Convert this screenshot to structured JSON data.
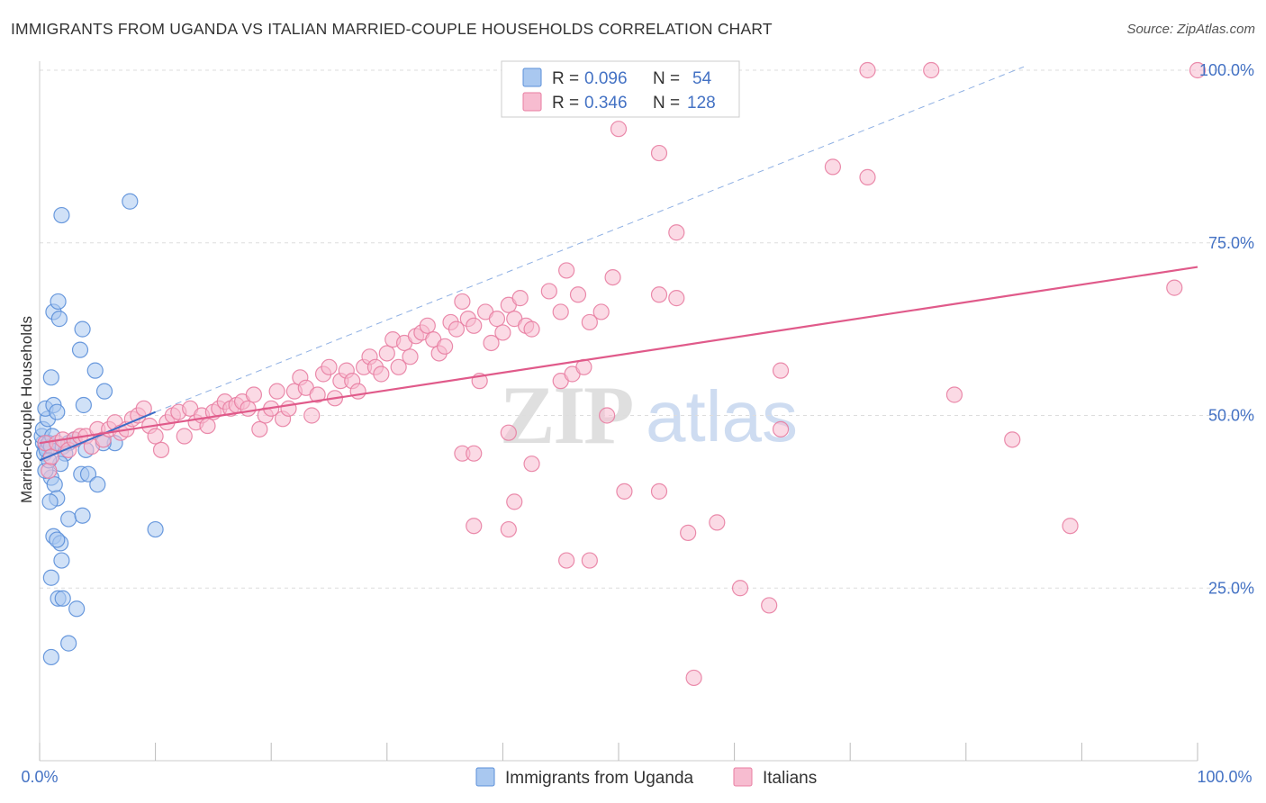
{
  "title": "IMMIGRANTS FROM UGANDA VS ITALIAN MARRIED-COUPLE HOUSEHOLDS CORRELATION CHART",
  "source": "Source: ZipAtlas.com",
  "watermark": {
    "zip": "ZIP",
    "atlas": "atlas"
  },
  "colors": {
    "blue_fill": "#a9c8f0",
    "blue_stroke": "#5b8fd9",
    "blue_line": "#3a6cc7",
    "pink_fill": "#f7bcd0",
    "pink_stroke": "#e87ea2",
    "pink_line": "#e05a8a",
    "axis_text": "#4472c4",
    "grid": "#dddddd"
  },
  "legend": {
    "rows": [
      {
        "r_label": "R =",
        "r_value": "0.096",
        "n_label": "N =",
        "n_value": "54",
        "series": "blue"
      },
      {
        "r_label": "R =",
        "r_value": "0.346",
        "n_label": "N =",
        "n_value": "128",
        "series": "pink"
      }
    ]
  },
  "chart_data": {
    "type": "scatter",
    "title": "IMMIGRANTS FROM UGANDA VS ITALIAN MARRIED-COUPLE HOUSEHOLDS CORRELATION CHART",
    "xlabel": "",
    "ylabel": "Married-couple Households",
    "xlim": [
      0,
      100
    ],
    "ylim": [
      0,
      102
    ],
    "x_tick_labels": [
      "0.0%",
      "100.0%"
    ],
    "y_ticks": [
      25,
      50,
      75,
      100
    ],
    "y_tick_labels": [
      "25.0%",
      "50.0%",
      "75.0%",
      "100.0%"
    ],
    "grid": "horizontal-dashed",
    "legend_position": "top-center",
    "series": [
      {
        "name": "Immigrants from Uganda",
        "color": "#a9c8f0",
        "trend": {
          "x": [
            0,
            10
          ],
          "y": [
            43.5,
            50.5
          ],
          "style": "solid"
        },
        "trend_extension": {
          "x": [
            10,
            85
          ],
          "y": [
            50.5,
            100.5
          ],
          "style": "dashed"
        },
        "points": [
          [
            0.3,
            46
          ],
          [
            0.5,
            45.5
          ],
          [
            0.4,
            44.5
          ],
          [
            0.2,
            47
          ],
          [
            0.6,
            45
          ],
          [
            0.8,
            46
          ],
          [
            1.0,
            45.5
          ],
          [
            0.3,
            48
          ],
          [
            0.7,
            49.5
          ],
          [
            0.5,
            51
          ],
          [
            1.2,
            51.5
          ],
          [
            1.5,
            50.5
          ],
          [
            1.0,
            55.5
          ],
          [
            1.2,
            65
          ],
          [
            1.6,
            66.5
          ],
          [
            1.7,
            64
          ],
          [
            1.9,
            79
          ],
          [
            3.5,
            59.5
          ],
          [
            3.8,
            51.5
          ],
          [
            3.6,
            41.5
          ],
          [
            4.2,
            41.5
          ],
          [
            4.8,
            56.5
          ],
          [
            3.7,
            62.5
          ],
          [
            5.6,
            53.5
          ],
          [
            7.8,
            81
          ],
          [
            6.5,
            46
          ],
          [
            5.0,
            40
          ],
          [
            1.0,
            41
          ],
          [
            1.3,
            40
          ],
          [
            1.5,
            38
          ],
          [
            0.9,
            37.5
          ],
          [
            2.5,
            35
          ],
          [
            3.7,
            35.5
          ],
          [
            1.2,
            32.5
          ],
          [
            1.8,
            31.5
          ],
          [
            1.5,
            32
          ],
          [
            1.9,
            29
          ],
          [
            1.0,
            26.5
          ],
          [
            1.6,
            23.5
          ],
          [
            2.0,
            23.5
          ],
          [
            3.2,
            22
          ],
          [
            2.5,
            17
          ],
          [
            1.0,
            15
          ],
          [
            10.0,
            33.5
          ],
          [
            2.0,
            45.5
          ],
          [
            2.5,
            46
          ],
          [
            3.0,
            46.5
          ],
          [
            2.2,
            44.5
          ],
          [
            1.8,
            43
          ],
          [
            0.5,
            42
          ],
          [
            0.8,
            43.5
          ],
          [
            1.1,
            47
          ],
          [
            4.0,
            45
          ],
          [
            5.5,
            46
          ]
        ]
      },
      {
        "name": "Italians",
        "color": "#f7bcd0",
        "trend": {
          "x": [
            0,
            100
          ],
          "y": [
            46,
            71.5
          ],
          "style": "solid"
        },
        "points": [
          [
            0.5,
            46
          ],
          [
            0.8,
            42
          ],
          [
            1.0,
            44
          ],
          [
            1.5,
            46
          ],
          [
            2.0,
            46.5
          ],
          [
            2.5,
            45
          ],
          [
            3.0,
            46.5
          ],
          [
            3.5,
            47
          ],
          [
            4.0,
            47
          ],
          [
            4.5,
            45.5
          ],
          [
            5.0,
            48
          ],
          [
            5.5,
            46.5
          ],
          [
            6.0,
            48
          ],
          [
            6.5,
            49
          ],
          [
            7.0,
            47.5
          ],
          [
            7.5,
            48
          ],
          [
            8.0,
            49.5
          ],
          [
            8.5,
            50
          ],
          [
            9.0,
            51
          ],
          [
            9.5,
            48.5
          ],
          [
            10.0,
            47
          ],
          [
            10.5,
            45
          ],
          [
            11.0,
            49
          ],
          [
            11.5,
            50
          ],
          [
            12.0,
            50.5
          ],
          [
            12.5,
            47
          ],
          [
            13.0,
            51
          ],
          [
            13.5,
            49
          ],
          [
            14.0,
            50
          ],
          [
            14.5,
            48.5
          ],
          [
            15.0,
            50.5
          ],
          [
            15.5,
            51
          ],
          [
            16.0,
            52
          ],
          [
            16.5,
            51
          ],
          [
            17.0,
            51.5
          ],
          [
            17.5,
            52
          ],
          [
            18.0,
            51
          ],
          [
            18.5,
            53
          ],
          [
            19.0,
            48
          ],
          [
            19.5,
            50
          ],
          [
            20.0,
            51
          ],
          [
            20.5,
            53.5
          ],
          [
            21.0,
            49.5
          ],
          [
            21.5,
            51
          ],
          [
            22.0,
            53.5
          ],
          [
            22.5,
            55.5
          ],
          [
            23.0,
            54
          ],
          [
            23.5,
            50
          ],
          [
            24.0,
            53
          ],
          [
            24.5,
            56
          ],
          [
            25.0,
            57
          ],
          [
            25.5,
            52.5
          ],
          [
            26.0,
            55
          ],
          [
            26.5,
            56.5
          ],
          [
            27.0,
            55
          ],
          [
            27.5,
            53.5
          ],
          [
            28.0,
            57
          ],
          [
            28.5,
            58.5
          ],
          [
            29.0,
            57
          ],
          [
            29.5,
            56
          ],
          [
            30.0,
            59
          ],
          [
            30.5,
            61
          ],
          [
            31.0,
            57
          ],
          [
            31.5,
            60.5
          ],
          [
            32.0,
            58.5
          ],
          [
            32.5,
            61.5
          ],
          [
            33.0,
            62
          ],
          [
            33.5,
            63
          ],
          [
            34.0,
            61
          ],
          [
            34.5,
            59
          ],
          [
            35.0,
            60
          ],
          [
            35.5,
            63.5
          ],
          [
            36.0,
            62.5
          ],
          [
            36.5,
            66.5
          ],
          [
            37.0,
            64
          ],
          [
            37.5,
            63
          ],
          [
            38.0,
            55
          ],
          [
            38.5,
            65
          ],
          [
            39.0,
            60.5
          ],
          [
            39.5,
            64
          ],
          [
            40.0,
            62
          ],
          [
            40.5,
            66
          ],
          [
            41.0,
            64
          ],
          [
            41.5,
            67
          ],
          [
            42.0,
            63
          ],
          [
            42.5,
            62.5
          ],
          [
            44.0,
            68
          ],
          [
            45.0,
            65
          ],
          [
            45.5,
            71
          ],
          [
            46.5,
            67.5
          ],
          [
            47.5,
            63.5
          ],
          [
            48.5,
            65
          ],
          [
            49.5,
            70
          ],
          [
            53.5,
            67.5
          ],
          [
            55.0,
            67
          ],
          [
            64.0,
            56.5
          ],
          [
            36.5,
            44.5
          ],
          [
            37.5,
            44.5
          ],
          [
            40.5,
            47.5
          ],
          [
            42.5,
            43
          ],
          [
            45.0,
            55
          ],
          [
            46.0,
            56
          ],
          [
            47.0,
            57
          ],
          [
            49.0,
            50
          ],
          [
            50.5,
            39
          ],
          [
            53.5,
            39
          ],
          [
            56.0,
            33
          ],
          [
            58.5,
            34.5
          ],
          [
            60.5,
            25
          ],
          [
            63.0,
            22.5
          ],
          [
            56.5,
            12
          ],
          [
            41.0,
            37.5
          ],
          [
            45.5,
            29
          ],
          [
            47.5,
            29
          ],
          [
            37.5,
            34
          ],
          [
            40.5,
            33.5
          ],
          [
            64.0,
            48
          ],
          [
            79.0,
            53
          ],
          [
            84.0,
            46.5
          ],
          [
            89.0,
            34
          ],
          [
            100.0,
            100
          ],
          [
            98.0,
            68.5
          ],
          [
            77.0,
            100
          ],
          [
            71.5,
            100
          ],
          [
            53.5,
            88
          ],
          [
            50.0,
            91.5
          ],
          [
            68.5,
            86
          ],
          [
            71.5,
            84.5
          ],
          [
            55.0,
            76.5
          ]
        ]
      }
    ]
  },
  "bottom_legend": {
    "items": [
      {
        "label": "Immigrants from Uganda",
        "series": "blue"
      },
      {
        "label": "Italians",
        "series": "pink"
      }
    ]
  }
}
